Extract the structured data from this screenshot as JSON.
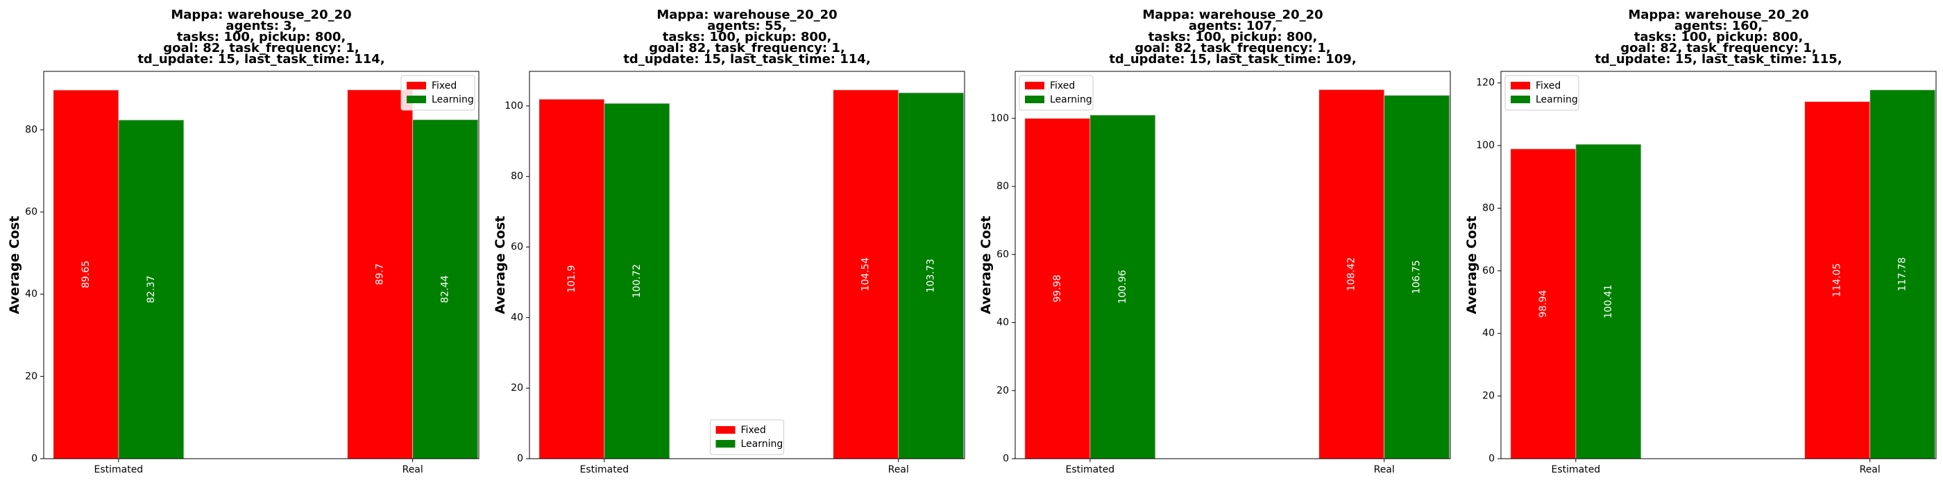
{
  "chart_data": [
    {
      "type": "bar",
      "title": [
        "Mappa: warehouse_20_20",
        "agents: 3,",
        "tasks: 100, pickup: 800,",
        "goal: 82, task_frequency: 1,",
        "td_update: 15, last_task_time: 114,"
      ],
      "xlabel": "",
      "ylabel": "Average Cost",
      "categories": [
        "Estimated",
        "Real"
      ],
      "series": [
        {
          "name": "Fixed",
          "color": "#ff0000",
          "values": [
            89.65,
            89.7
          ],
          "labels": [
            "89.65",
            "89.7"
          ]
        },
        {
          "name": "Learning",
          "color": "#008000",
          "values": [
            82.37,
            82.44
          ],
          "labels": [
            "82.37",
            "82.44"
          ]
        }
      ],
      "ylim": [
        0,
        94.2
      ],
      "yticks": [
        0,
        20,
        40,
        60,
        80
      ],
      "legend": "upper right",
      "grid": false
    },
    {
      "type": "bar",
      "title": [
        "Mappa: warehouse_20_20",
        "agents: 55,",
        "tasks: 100, pickup: 800,",
        "goal: 82, task_frequency: 1,",
        "td_update: 15, last_task_time: 114,"
      ],
      "xlabel": "",
      "ylabel": "Average Cost",
      "categories": [
        "Estimated",
        "Real"
      ],
      "series": [
        {
          "name": "Fixed",
          "color": "#ff0000",
          "values": [
            101.9,
            104.54
          ],
          "labels": [
            "101.9",
            "104.54"
          ]
        },
        {
          "name": "Learning",
          "color": "#008000",
          "values": [
            100.72,
            103.73
          ],
          "labels": [
            "100.72",
            "103.73"
          ]
        }
      ],
      "ylim": [
        0,
        109.8
      ],
      "yticks": [
        0,
        20,
        40,
        60,
        80,
        100
      ],
      "legend": "lower center",
      "grid": false
    },
    {
      "type": "bar",
      "title": [
        "Mappa: warehouse_20_20",
        "agents: 107,",
        "tasks: 100, pickup: 800,",
        "goal: 82, task_frequency: 1,",
        "td_update: 15, last_task_time: 109,"
      ],
      "xlabel": "",
      "ylabel": "Average Cost",
      "categories": [
        "Estimated",
        "Real"
      ],
      "series": [
        {
          "name": "Fixed",
          "color": "#ff0000",
          "values": [
            99.98,
            108.42
          ],
          "labels": [
            "99.98",
            "108.42"
          ]
        },
        {
          "name": "Learning",
          "color": "#008000",
          "values": [
            100.96,
            106.75
          ],
          "labels": [
            "100.96",
            "106.75"
          ]
        }
      ],
      "ylim": [
        0,
        113.8
      ],
      "yticks": [
        0,
        20,
        40,
        60,
        80,
        100
      ],
      "legend": "upper left",
      "grid": false
    },
    {
      "type": "bar",
      "title": [
        "Mappa: warehouse_20_20",
        "agents: 160,",
        "tasks: 100, pickup: 800,",
        "goal: 82, task_frequency: 1,",
        "td_update: 15, last_task_time: 115,"
      ],
      "xlabel": "",
      "ylabel": "Average Cost",
      "categories": [
        "Estimated",
        "Real"
      ],
      "series": [
        {
          "name": "Fixed",
          "color": "#ff0000",
          "values": [
            98.94,
            114.05
          ],
          "labels": [
            "98.94",
            "114.05"
          ]
        },
        {
          "name": "Learning",
          "color": "#008000",
          "values": [
            100.41,
            117.78
          ],
          "labels": [
            "100.41",
            "117.78"
          ]
        }
      ],
      "ylim": [
        0,
        123.7
      ],
      "yticks": [
        0,
        20,
        40,
        60,
        80,
        100,
        120
      ],
      "legend": "upper left",
      "grid": false
    }
  ]
}
